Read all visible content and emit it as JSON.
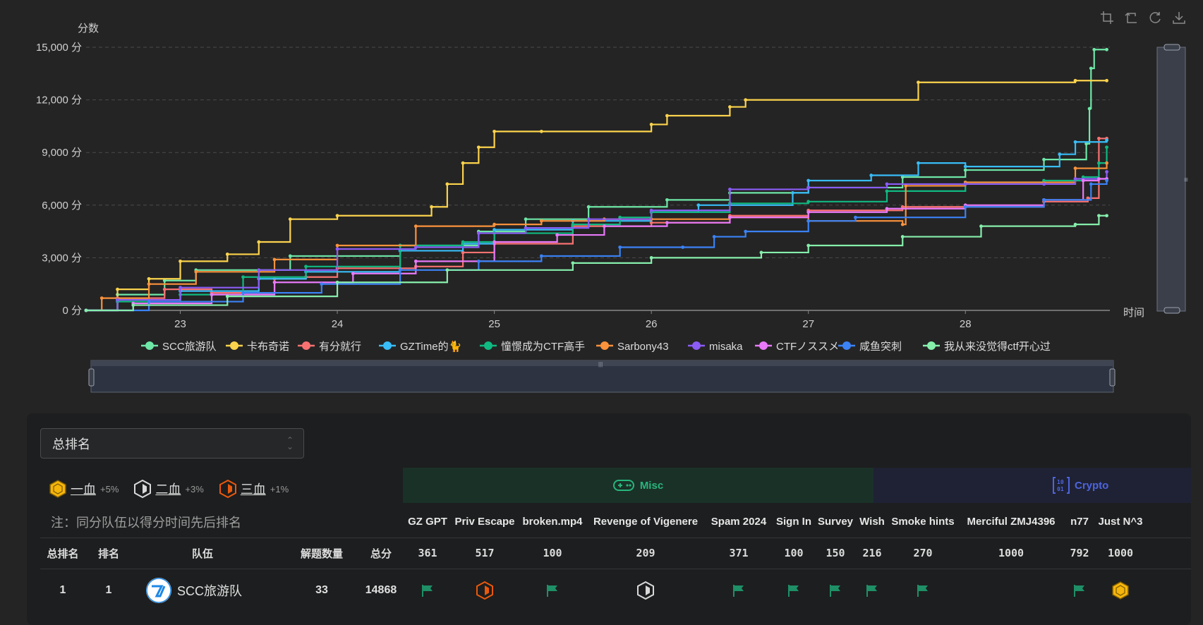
{
  "chart_data": {
    "type": "line",
    "step": true,
    "ylabel": "分数",
    "xlabel": "时间",
    "y_ticks": [
      "0 分",
      "3,000 分",
      "6,000 分",
      "9,000 分",
      "12,000 分",
      "15,000 分"
    ],
    "x_ticks": [
      "23",
      "24",
      "25",
      "26",
      "27",
      "28"
    ],
    "xlim": [
      22.4,
      28.92
    ],
    "ylim": [
      0,
      15000
    ],
    "grid": true,
    "legend_position": "bottom",
    "series": [
      {
        "name": "SCC旅游队",
        "color": "#6ee7a7",
        "x": [
          22.4,
          22.6,
          22.9,
          23.1,
          23.7,
          24.4,
          24.9,
          25.2,
          25.6,
          26.1,
          26.5,
          27.0,
          27.6,
          28.0,
          28.5,
          28.77,
          28.79,
          28.8,
          28.82,
          28.9
        ],
        "y": [
          0,
          900,
          1700,
          2300,
          3100,
          3700,
          4500,
          5200,
          5900,
          6300,
          6700,
          7000,
          7600,
          8000,
          8600,
          9500,
          11500,
          13800,
          14868,
          14868
        ]
      },
      {
        "name": "卡布奇诺",
        "color": "#fcd34d",
        "x": [
          22.4,
          22.6,
          22.8,
          23.0,
          23.3,
          23.5,
          23.7,
          24.0,
          24.6,
          24.7,
          24.8,
          24.9,
          25.0,
          25.3,
          26.0,
          26.1,
          26.5,
          26.6,
          27.7,
          28.7,
          28.9
        ],
        "y": [
          0,
          1200,
          1800,
          2800,
          3200,
          3900,
          5200,
          5400,
          5900,
          7200,
          8400,
          9300,
          10200,
          10200,
          10600,
          11100,
          11600,
          12000,
          13000,
          13100,
          13100
        ]
      },
      {
        "name": "有分就行",
        "color": "#f87171",
        "x": [
          22.4,
          22.6,
          22.9,
          23.2,
          23.6,
          23.8,
          24.0,
          24.5,
          24.8,
          25.0,
          25.5,
          26.0,
          26.5,
          27.0,
          27.6,
          28.0,
          28.5,
          28.78,
          28.85,
          28.9
        ],
        "y": [
          0,
          700,
          1200,
          1000,
          1800,
          1900,
          2400,
          2500,
          3300,
          3800,
          4800,
          5000,
          5400,
          5700,
          5900,
          5900,
          6200,
          6400,
          9800,
          9800
        ]
      },
      {
        "name": "GZTime的🐈",
        "color": "#38bdf8",
        "x": [
          22.4,
          22.6,
          23.0,
          23.5,
          23.8,
          24.4,
          24.8,
          25.0,
          25.5,
          26.0,
          26.3,
          26.9,
          27.0,
          27.4,
          27.7,
          28.0,
          28.6,
          28.7,
          28.9
        ],
        "y": [
          0,
          600,
          1100,
          1800,
          2200,
          3400,
          3800,
          4600,
          5100,
          5600,
          6000,
          6700,
          7400,
          7700,
          8400,
          8200,
          8900,
          9600,
          9700
        ]
      },
      {
        "name": "憧憬成为CTF高手",
        "color": "#10b981",
        "x": [
          22.4,
          22.6,
          23.0,
          23.4,
          23.8,
          24.4,
          24.8,
          25.0,
          25.5,
          25.8,
          26.0,
          26.5,
          27.0,
          27.5,
          28.0,
          28.5,
          28.75,
          28.85,
          28.9
        ],
        "y": [
          0,
          500,
          900,
          1900,
          2500,
          3700,
          3900,
          4400,
          4900,
          5300,
          5600,
          6100,
          6200,
          6800,
          7300,
          7400,
          7600,
          8400,
          9300
        ]
      },
      {
        "name": "Sarbony43",
        "color": "#fb923c",
        "x": [
          22.4,
          22.5,
          22.8,
          23.1,
          23.6,
          24.0,
          24.5,
          25.0,
          25.3,
          25.7,
          26.0,
          26.5,
          27.0,
          27.6,
          27.62,
          28.0,
          28.7,
          28.9
        ],
        "y": [
          0,
          700,
          1500,
          2200,
          2900,
          3700,
          4800,
          4900,
          5100,
          5200,
          5200,
          5300,
          5100,
          4900,
          7100,
          7300,
          8100,
          8400
        ]
      },
      {
        "name": "misaka",
        "color": "#8b5cf6",
        "x": [
          22.4,
          22.6,
          23.0,
          23.5,
          24.0,
          24.5,
          24.9,
          25.2,
          25.6,
          26.0,
          26.5,
          27.0,
          27.5,
          28.0,
          28.5,
          28.7,
          28.9
        ],
        "y": [
          0,
          600,
          1300,
          2300,
          3500,
          3600,
          4400,
          4700,
          5200,
          5700,
          6900,
          7000,
          7200,
          7200,
          7200,
          7500,
          7900
        ]
      },
      {
        "name": "CTFノススメ",
        "color": "#e879f9",
        "x": [
          22.4,
          22.7,
          23.2,
          23.6,
          24.1,
          24.5,
          25.0,
          25.4,
          25.7,
          26.1,
          26.5,
          27.0,
          27.5,
          28.0,
          28.5,
          28.75,
          28.85,
          28.9
        ],
        "y": [
          0,
          400,
          900,
          1600,
          2100,
          2800,
          3900,
          4300,
          4800,
          5000,
          5300,
          5600,
          5800,
          6000,
          6300,
          7400,
          7500,
          7500
        ]
      },
      {
        "name": "咸鱼突刺",
        "color": "#3b82f6",
        "x": [
          22.4,
          22.8,
          23.4,
          23.9,
          24.4,
          24.9,
          25.3,
          25.8,
          26.2,
          26.4,
          26.6,
          27.0,
          27.3,
          28.0,
          28.5,
          28.8,
          28.9
        ],
        "y": [
          0,
          500,
          1000,
          1500,
          2300,
          2800,
          3100,
          3600,
          3600,
          4200,
          4500,
          5100,
          5300,
          5900,
          6300,
          7200,
          7400
        ]
      },
      {
        "name": "我从来没觉得ctf开心过",
        "color": "#86efac",
        "x": [
          22.4,
          22.7,
          23.3,
          24.0,
          24.7,
          25.5,
          26.0,
          26.7,
          27.0,
          27.6,
          28.1,
          28.7,
          28.85,
          28.9
        ],
        "y": [
          0,
          300,
          800,
          1600,
          2300,
          2700,
          3000,
          3300,
          3700,
          4200,
          4800,
          4900,
          5400,
          5400
        ]
      }
    ]
  },
  "toolbar": {
    "icons": [
      "zoom-area-icon",
      "zoom-reset-icon",
      "restore-icon",
      "download-icon"
    ]
  },
  "scoreboard": {
    "select_value": "总排名",
    "blood": [
      {
        "label": "一血",
        "bonus": "+5%",
        "color": "#f5b50a"
      },
      {
        "label": "二血",
        "bonus": "+3%",
        "color": "#d9d9d9"
      },
      {
        "label": "三血",
        "bonus": "+1%",
        "color": "#ea580c"
      }
    ],
    "note": "注：同分队伍以得分时间先后排名",
    "categories": {
      "misc": {
        "label": "Misc",
        "color": "#27b67c"
      },
      "crypto": {
        "label": "Crypto",
        "color": "#4d64e0"
      }
    },
    "left_headers": [
      "总排名",
      "排名",
      "队伍",
      "解题数量",
      "总分"
    ],
    "challenges": [
      "GZ GPT",
      "Priv Escape",
      "broken.mp4",
      "Revenge of Vigenere",
      "Spam 2024",
      "Sign In",
      "Survey",
      "Wish",
      "Smoke hints",
      "Merciful ZMJ4396",
      "n77",
      "Just N^3"
    ],
    "challenge_scores": [
      "361",
      "517",
      "100",
      "209",
      "371",
      "100",
      "150",
      "216",
      "270",
      "1000",
      "792",
      "1000"
    ],
    "row": {
      "total_rank": "1",
      "rank": "1",
      "team": "SCC旅游队",
      "solved": "33",
      "score": "14868",
      "marks": [
        "flag",
        "third",
        "flag",
        "second",
        "flag",
        "flag",
        "flag",
        "flag",
        "flag",
        "",
        "flag",
        "first"
      ]
    }
  }
}
